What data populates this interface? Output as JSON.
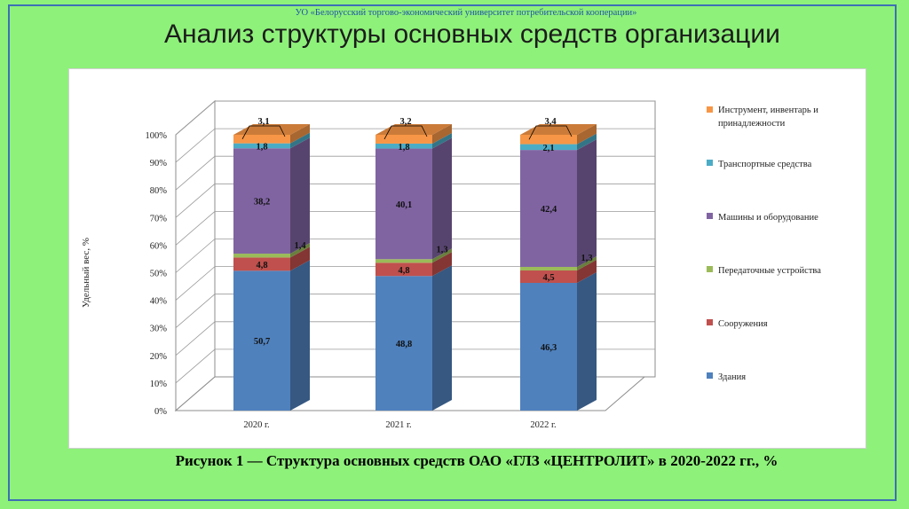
{
  "header": {
    "university": "УО «Белорусский торгово-экономический университет потребительской кооперации»",
    "title": "Анализ структуры основных средств организации"
  },
  "caption": "Рисунок 1 — Структура основных средств ОАО «ГЛЗ «ЦЕНТРОЛИТ» в 2020-2022 гг., %",
  "colors": {
    "background": "#8ef17a",
    "frame": "#3d6fb4",
    "series": [
      "#4f81bd",
      "#c0504d",
      "#9bbb59",
      "#8064a2",
      "#4bacc6",
      "#f79646"
    ]
  },
  "chart_data": {
    "type": "bar",
    "stacked": true,
    "three_d": true,
    "categories": [
      "2020 г.",
      "2021 г.",
      "2022 г."
    ],
    "ylabel": "Удельный вес, %",
    "y_ticks": [
      "0%",
      "10%",
      "20%",
      "30%",
      "40%",
      "50%",
      "60%",
      "70%",
      "80%",
      "90%",
      "100%"
    ],
    "ylim": [
      0,
      100
    ],
    "legend_position": "right",
    "series": [
      {
        "name": "Здания",
        "values": [
          50.7,
          48.8,
          46.3
        ],
        "labels": [
          "50,7",
          "48,8",
          "46,3"
        ]
      },
      {
        "name": "Сооружения",
        "values": [
          4.8,
          4.8,
          4.5
        ],
        "labels": [
          "4,8",
          "4,8",
          "4,5"
        ]
      },
      {
        "name": "Передаточные устройства",
        "values": [
          1.4,
          1.3,
          1.3
        ],
        "labels": [
          "1,4",
          "1,3",
          "1,3"
        ]
      },
      {
        "name": "Машины и оборудование",
        "values": [
          38.2,
          40.1,
          42.4
        ],
        "labels": [
          "38,2",
          "40,1",
          "42,4"
        ]
      },
      {
        "name": "Транспортные средства",
        "values": [
          1.8,
          1.8,
          2.1
        ],
        "labels": [
          "1,8",
          "1,8",
          "2,1"
        ]
      },
      {
        "name": "Инструмент, инвентарь и принадлежности",
        "values": [
          3.1,
          3.2,
          3.4
        ],
        "labels": [
          "3,1",
          "3,2",
          "3,4"
        ]
      }
    ]
  }
}
